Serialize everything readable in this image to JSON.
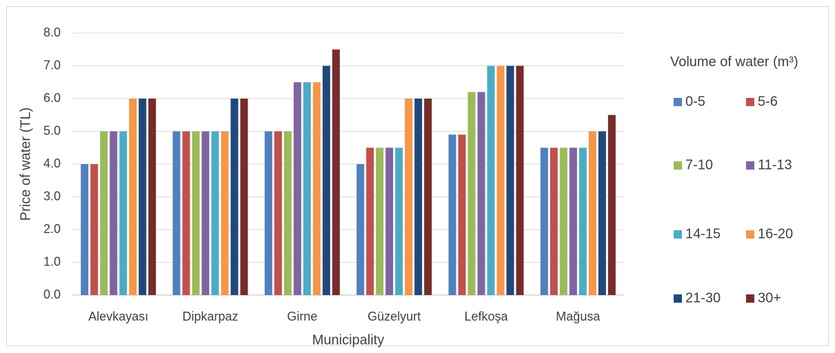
{
  "chart_data": {
    "type": "bar",
    "x_label": "Municipality",
    "y_label": "Price of water (TL)",
    "legend_title": "Volume of water (m³)",
    "legend_position": "right",
    "grid": true,
    "categories": [
      "Alevkayası",
      "Dipkarpaz",
      "Girne",
      "Güzelyurt",
      "Lefkoşa",
      "Mağusa"
    ],
    "series": [
      {
        "name": "0-5",
        "color": "#4f81bd",
        "values": [
          4,
          5,
          5,
          4,
          4.9,
          4.5
        ]
      },
      {
        "name": "5-6",
        "color": "#c0504d",
        "values": [
          4,
          5,
          5,
          4.5,
          4.9,
          4.5
        ]
      },
      {
        "name": "7-10",
        "color": "#9bbb59",
        "values": [
          5,
          5,
          5,
          4.5,
          6.2,
          4.5
        ]
      },
      {
        "name": "11-13",
        "color": "#8064a2",
        "values": [
          5,
          5,
          6.5,
          4.5,
          6.2,
          4.5
        ]
      },
      {
        "name": "14-15",
        "color": "#4bacc6",
        "values": [
          5,
          5,
          6.5,
          4.5,
          7,
          4.5
        ]
      },
      {
        "name": "16-20",
        "color": "#f79646",
        "values": [
          6,
          5,
          6.5,
          6,
          7,
          5
        ]
      },
      {
        "name": "21-30",
        "color": "#1f497d",
        "values": [
          6,
          6,
          7,
          6,
          7,
          5
        ]
      },
      {
        "name": "30+",
        "color": "#772c2a",
        "values": [
          6,
          6,
          7.5,
          6,
          7,
          5.5
        ]
      }
    ],
    "ylim": [
      0,
      8
    ],
    "yticks": [
      {
        "value": 0,
        "label": "0.0"
      },
      {
        "value": 1,
        "label": "1.0"
      },
      {
        "value": 2,
        "label": "2.0"
      },
      {
        "value": 3,
        "label": "3.0"
      },
      {
        "value": 4,
        "label": "4.0"
      },
      {
        "value": 5,
        "label": "5.0"
      },
      {
        "value": 6,
        "label": "6.0"
      },
      {
        "value": 7,
        "label": "7.0"
      },
      {
        "value": 8,
        "label": "8.0"
      }
    ]
  }
}
